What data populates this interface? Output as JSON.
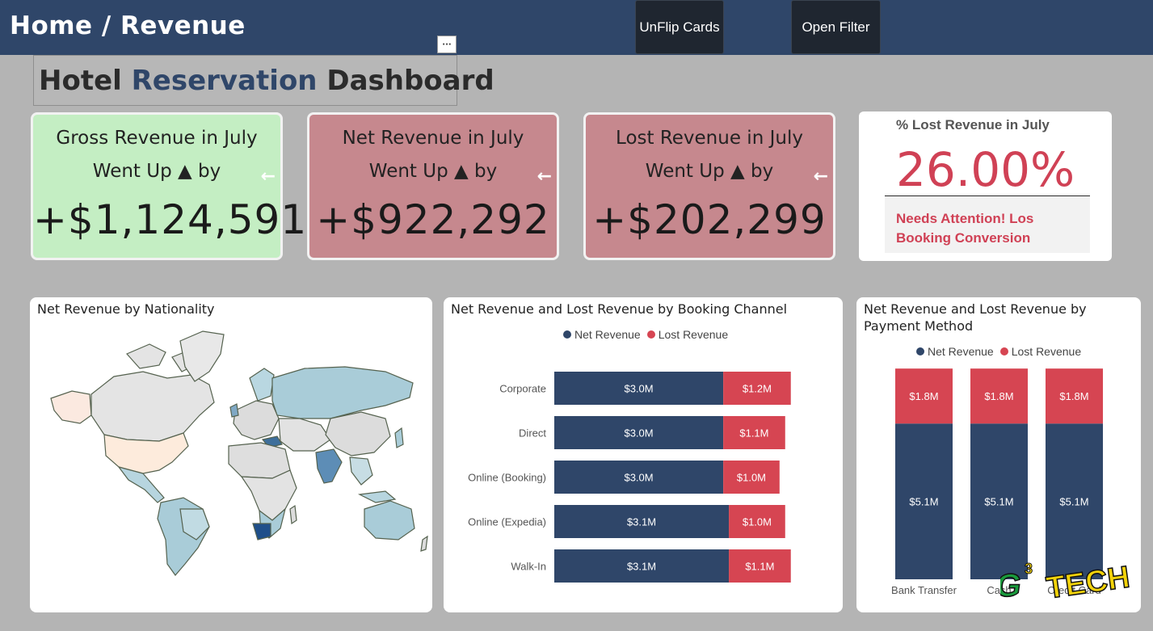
{
  "header": {
    "breadcrumb": "Home / Revenue",
    "unflip_label": "UnFlip Cards",
    "filter_label": "Open Filter",
    "more_label": "···"
  },
  "title": {
    "part1": "Hotel ",
    "accent": "Reservation",
    "part2": " Dashboard"
  },
  "cards": {
    "gross": {
      "line1": "Gross Revenue in July",
      "line2": "Went Up ▲ by",
      "value": "+$1,124,591",
      "back_arrow": "←"
    },
    "net": {
      "line1": "Net Revenue in July",
      "line2": "Went Up ▲ by",
      "value": "+$922,292",
      "back_arrow": "←"
    },
    "lost": {
      "line1": "Lost Revenue in July",
      "line2": "Went Up ▲ by",
      "value": "+$202,299",
      "back_arrow": "←"
    },
    "pct_lost": {
      "title": "% Lost Revenue in July",
      "value": "26.00%",
      "note_line1": "Needs Attention! Los",
      "note_line2": "Booking Conversion"
    }
  },
  "colors": {
    "net": "#2f4669",
    "lost": "#d64552",
    "gross_card": "#c4eec3",
    "alert_card": "#c6888e",
    "topbar": "#2f4669"
  },
  "map": {
    "title": "Net Revenue by Nationality"
  },
  "chart_data": [
    {
      "type": "bar",
      "orientation": "horizontal",
      "stacked": true,
      "title": "Net Revenue and Lost Revenue by Booking Channel",
      "legend_position": "top-center",
      "categories": [
        "Corporate",
        "Direct",
        "Online (Booking)",
        "Online (Expedia)",
        "Walk-In"
      ],
      "series": [
        {
          "name": "Net Revenue",
          "color": "#2f4669",
          "values": [
            3.0,
            3.0,
            3.0,
            3.1,
            3.1
          ],
          "labels": [
            "$3.0M",
            "$3.0M",
            "$3.0M",
            "$3.1M",
            "$3.1M"
          ]
        },
        {
          "name": "Lost Revenue",
          "color": "#d64552",
          "values": [
            1.2,
            1.1,
            1.0,
            1.0,
            1.1
          ],
          "labels": [
            "$1.2M",
            "$1.1M",
            "$1.0M",
            "$1.0M",
            "$1.1M"
          ]
        }
      ]
    },
    {
      "type": "bar",
      "orientation": "vertical",
      "stacked": true,
      "title": "Net Revenue and Lost Revenue by Payment Method",
      "legend_position": "top-center",
      "categories": [
        "Bank Transfer",
        "Cash",
        "Credit Card"
      ],
      "series": [
        {
          "name": "Net Revenue",
          "color": "#2f4669",
          "values": [
            5.1,
            5.1,
            5.1
          ],
          "labels": [
            "$5.1M",
            "$5.1M",
            "$5.1M"
          ]
        },
        {
          "name": "Lost Revenue",
          "color": "#d64552",
          "values": [
            1.8,
            1.8,
            1.8
          ],
          "labels": [
            "$1.8M",
            "$1.8M",
            "$1.8M"
          ]
        }
      ]
    }
  ],
  "watermark": {
    "brand": "G",
    "sup": "3",
    "word": "TECH"
  }
}
